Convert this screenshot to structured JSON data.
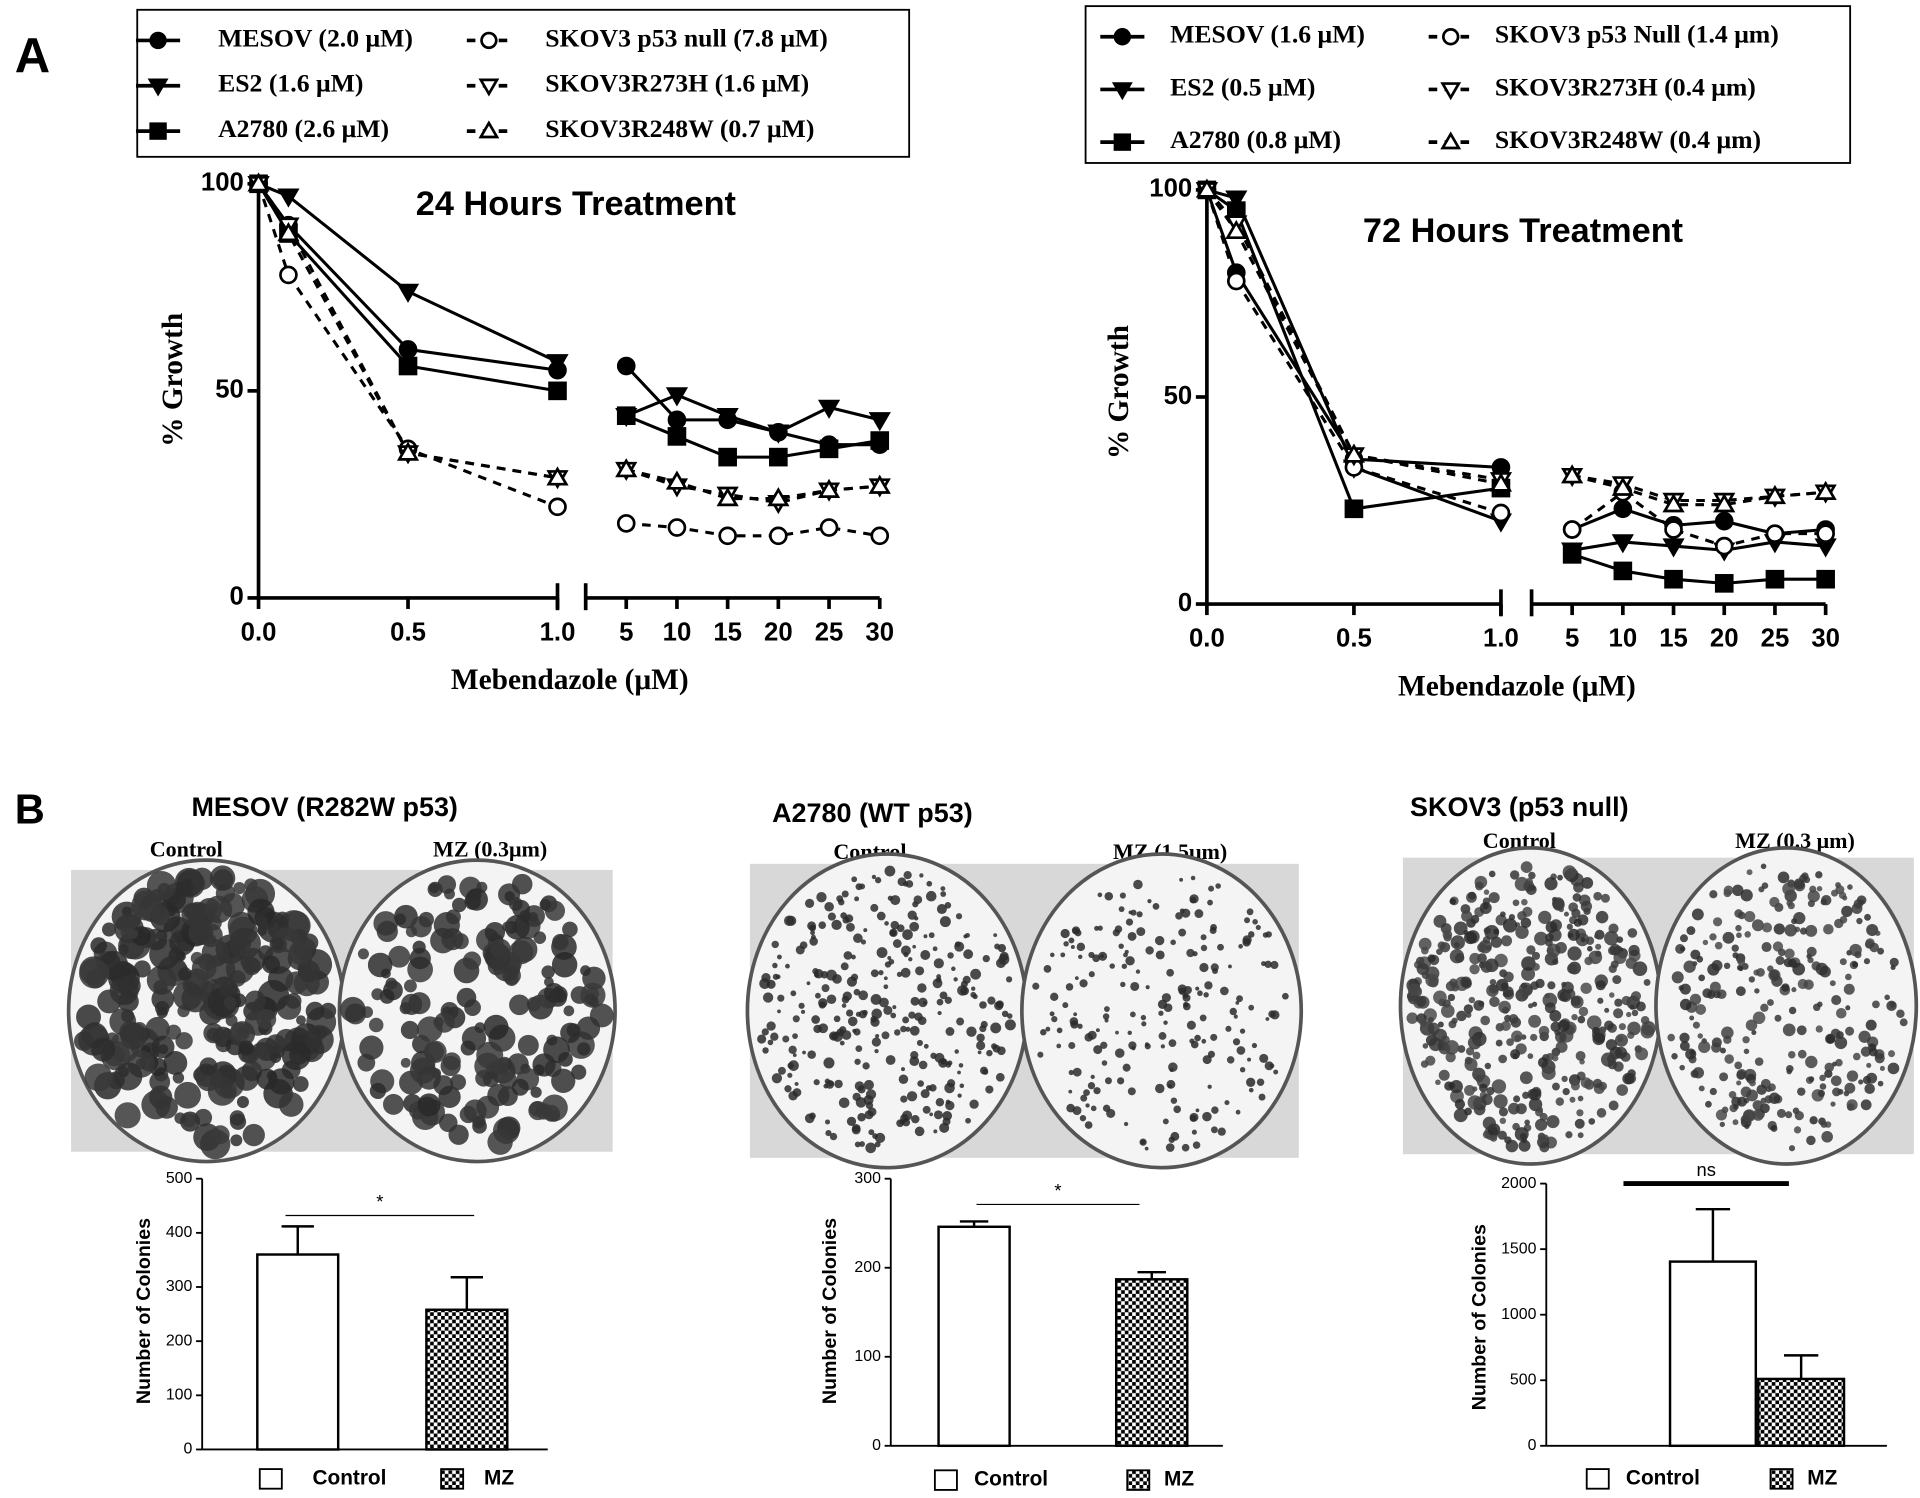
{
  "panel_labels": [
    "A",
    "B"
  ],
  "photos": [
    {
      "title": "MESOV (R282W p53)",
      "labels": [
        "Control",
        "MZ (0.3μm)"
      ]
    },
    {
      "title": "A2780 (WT p53)",
      "labels": [
        "Control",
        "MZ (1.5μm)"
      ]
    },
    {
      "title": "SKOV3 (p53 null)",
      "labels": [
        "Control",
        "MZ (0.3 μm)"
      ]
    }
  ],
  "chart_data": [
    {
      "type": "scatter",
      "title": "24 Hours Treatment",
      "x_label": "Mebendazole (μM)",
      "y_label": "% Growth",
      "x": [
        0,
        0.1,
        0.5,
        1,
        5,
        10,
        15,
        20,
        25,
        30
      ],
      "xlim": [
        [
          0,
          1
        ],
        [
          1,
          30
        ]
      ],
      "xticks": [
        [
          {
            "value": 0,
            "label": "0.0"
          },
          {
            "value": 0.5,
            "label": "0.5"
          },
          {
            "value": 1,
            "label": "1.0"
          }
        ],
        [
          5,
          10,
          15,
          20,
          25,
          30
        ]
      ],
      "ylim": [
        0,
        100
      ],
      "yticks": [
        0,
        50,
        100
      ],
      "series": [
        {
          "name": "MESOV (2.0 μM)",
          "color": "#000000",
          "marker": "circle",
          "filled": true,
          "dash": false,
          "values": [
            100,
            90,
            60,
            55,
            56,
            43,
            43,
            40,
            37,
            37
          ]
        },
        {
          "name": "ES2 (1.6 μM)",
          "color": "#000000",
          "marker": "triangle-down",
          "filled": true,
          "dash": false,
          "values": [
            100,
            97,
            74,
            57,
            44,
            49,
            44,
            40,
            46,
            43
          ]
        },
        {
          "name": "A2780 (2.6 μM)",
          "color": "#000000",
          "marker": "square",
          "filled": true,
          "dash": false,
          "values": [
            100,
            88,
            56,
            50,
            44,
            39,
            34,
            34,
            36,
            38
          ]
        },
        {
          "name": "SKOV3 p53 null (7.8 μM)",
          "color": "#000000",
          "marker": "circle",
          "filled": false,
          "dash": true,
          "values": [
            100,
            78,
            36,
            22,
            18,
            17,
            15,
            15,
            17,
            15
          ]
        },
        {
          "name": "SKOV3R273H (1.6 μM)",
          "color": "#000000",
          "marker": "triangle-down",
          "filled": false,
          "dash": true,
          "values": [
            100,
            90,
            35,
            29,
            31,
            27,
            25,
            23,
            26,
            27
          ]
        },
        {
          "name": "SKOV3R248W (0.7 μM)",
          "color": "#000000",
          "marker": "triangle-up",
          "filled": false,
          "dash": true,
          "values": [
            100,
            88,
            35,
            29,
            31,
            28,
            24,
            24,
            26,
            27
          ]
        }
      ]
    },
    {
      "type": "scatter",
      "title": "72 Hours Treatment",
      "x_label": "Mebendazole (μM)",
      "y_label": "% Growth",
      "x": [
        0,
        0.1,
        0.5,
        1,
        5,
        10,
        15,
        20,
        25,
        30
      ],
      "xlim": [
        [
          0,
          1
        ],
        [
          1,
          30
        ]
      ],
      "xticks": [
        [
          {
            "value": 0,
            "label": "0.0"
          },
          {
            "value": 0.5,
            "label": "0.5"
          },
          {
            "value": 1,
            "label": "1.0"
          }
        ],
        [
          5,
          10,
          15,
          20,
          25,
          30
        ]
      ],
      "ylim": [
        0,
        100
      ],
      "yticks": [
        0,
        50,
        100
      ],
      "series": [
        {
          "name": "MESOV (1.6 μM)",
          "color": "#000000",
          "marker": "circle",
          "filled": true,
          "dash": false,
          "values": [
            100,
            80,
            35,
            33,
            18,
            23,
            19,
            20,
            17,
            18
          ]
        },
        {
          "name": "ES2 (0.5 μM)",
          "color": "#000000",
          "marker": "triangle-down",
          "filled": true,
          "dash": false,
          "values": [
            100,
            98,
            33,
            20,
            13,
            15,
            14,
            13,
            15,
            14
          ]
        },
        {
          "name": "A2780 (0.8 μM)",
          "color": "#000000",
          "marker": "square",
          "filled": true,
          "dash": false,
          "values": [
            100,
            95,
            23,
            28,
            12,
            8,
            6,
            5,
            6,
            6
          ]
        },
        {
          "name": "SKOV3 p53 Null (1.4 μm)",
          "color": "#000000",
          "marker": "circle",
          "filled": false,
          "dash": true,
          "values": [
            100,
            78,
            33,
            22,
            18,
            27,
            18,
            14,
            17,
            17
          ]
        },
        {
          "name": "SKOV3R273H (0.4 μm)",
          "color": "#000000",
          "marker": "triangle-down",
          "filled": false,
          "dash": true,
          "values": [
            100,
            92,
            36,
            30,
            31,
            29,
            25,
            25,
            26,
            27
          ]
        },
        {
          "name": "SKOV3R248W (0.4 μm)",
          "color": "#000000",
          "marker": "triangle-up",
          "filled": false,
          "dash": true,
          "values": [
            100,
            90,
            36,
            29,
            31,
            28,
            24,
            24,
            26,
            27
          ]
        }
      ]
    },
    {
      "type": "bar",
      "y_label": "Number of Colonies",
      "annotation": "*",
      "categories": [
        "Control",
        "MZ"
      ],
      "values": [
        360,
        258
      ],
      "errors": [
        52,
        60
      ],
      "hatch": [
        false,
        true
      ],
      "color": "#000000",
      "ylim": [
        0,
        500
      ],
      "yticks": [
        0,
        100,
        200,
        300,
        400,
        500
      ]
    },
    {
      "type": "bar",
      "y_label": "Number of Colonies",
      "annotation": "*",
      "categories": [
        "Control",
        "MZ"
      ],
      "values": [
        246,
        187
      ],
      "errors": [
        6,
        8
      ],
      "hatch": [
        false,
        true
      ],
      "color": "#000000",
      "ylim": [
        0,
        300
      ],
      "yticks": [
        0,
        100,
        200,
        300
      ]
    },
    {
      "type": "bar",
      "y_label": "Number of Colonies",
      "annotation": "ns",
      "categories": [
        "Control",
        "MZ"
      ],
      "values": [
        1405,
        510
      ],
      "errors": [
        400,
        180
      ],
      "hatch": [
        false,
        true
      ],
      "color": "#000000",
      "ylim": [
        0,
        2000
      ],
      "yticks": [
        0,
        500,
        1000,
        1500,
        2000
      ]
    }
  ]
}
